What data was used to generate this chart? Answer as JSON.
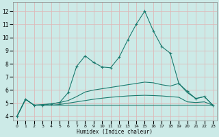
{
  "xlabel": "Humidex (Indice chaleur)",
  "x_ticks": [
    0,
    1,
    2,
    3,
    4,
    5,
    6,
    7,
    8,
    9,
    10,
    11,
    12,
    13,
    14,
    15,
    16,
    17,
    18,
    19,
    20,
    21,
    22,
    23
  ],
  "xlim": [
    -0.5,
    23.5
  ],
  "ylim": [
    3.7,
    12.7
  ],
  "y_ticks": [
    4,
    5,
    6,
    7,
    8,
    9,
    10,
    11,
    12
  ],
  "bg_color": "#cceae7",
  "grid_color": "#ddb8b8",
  "line_color": "#1a7a6e",
  "curves": {
    "c1": [
      4.0,
      5.3,
      4.85,
      4.85,
      4.95,
      5.05,
      5.8,
      7.8,
      8.6,
      8.1,
      7.75,
      7.7,
      8.5,
      9.8,
      11.0,
      12.0,
      10.5,
      9.3,
      8.8,
      6.5,
      5.9,
      5.35,
      5.5,
      4.85
    ],
    "c2": [
      4.0,
      5.3,
      4.85,
      4.9,
      4.95,
      5.05,
      5.2,
      5.5,
      5.85,
      6.0,
      6.1,
      6.2,
      6.3,
      6.4,
      6.5,
      6.6,
      6.55,
      6.4,
      6.3,
      6.5,
      5.8,
      5.35,
      5.5,
      4.85
    ],
    "c3": [
      4.0,
      5.3,
      4.85,
      4.85,
      4.85,
      4.9,
      5.0,
      5.1,
      5.2,
      5.3,
      5.38,
      5.45,
      5.5,
      5.55,
      5.58,
      5.6,
      5.58,
      5.55,
      5.5,
      5.45,
      5.1,
      5.05,
      5.1,
      4.85
    ],
    "c4": [
      4.0,
      5.3,
      4.85,
      4.85,
      4.85,
      4.85,
      4.85,
      4.85,
      4.85,
      4.85,
      4.85,
      4.85,
      4.85,
      4.85,
      4.85,
      4.85,
      4.85,
      4.85,
      4.85,
      4.85,
      4.85,
      4.85,
      4.85,
      4.85
    ]
  }
}
